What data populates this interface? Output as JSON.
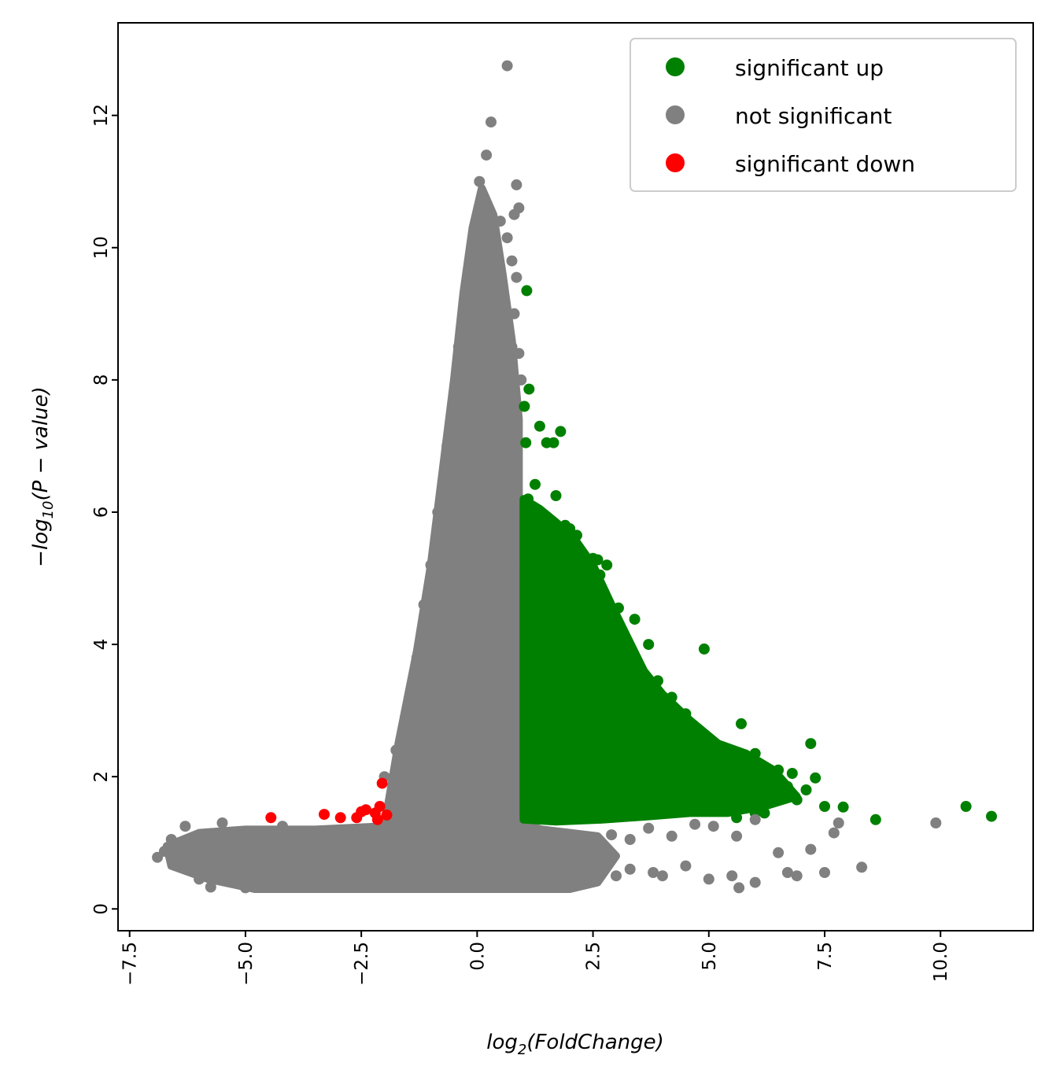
{
  "chart_data": {
    "type": "scatter",
    "title": "",
    "xlabel": {
      "base": "log",
      "sub": "2",
      "rest": "(FoldChange)"
    },
    "ylabel": {
      "pre": "−log",
      "sub": "10",
      "rest": "(P − value)"
    },
    "xlim": [
      -7.75,
      12.0
    ],
    "ylim": [
      -0.33,
      13.4
    ],
    "x_ticks": [
      -7.5,
      -5.0,
      -2.5,
      0.0,
      2.5,
      5.0,
      7.5,
      10.0
    ],
    "x_tick_labels": [
      "−7.5",
      "−5.0",
      "−2.5",
      "0.0",
      "2.5",
      "5.0",
      "7.5",
      "10.0"
    ],
    "y_ticks": [
      0,
      2,
      4,
      6,
      8,
      10,
      12
    ],
    "y_tick_labels": [
      "0",
      "2",
      "4",
      "6",
      "8",
      "10",
      "12"
    ],
    "grid": false,
    "legend_position": "top-right",
    "legend": [
      {
        "label": "significant up",
        "color": "#008000"
      },
      {
        "label": "not significant",
        "color": "#808080"
      },
      {
        "label": "significant down",
        "color": "#ff0000"
      }
    ],
    "series": [
      {
        "name": "significant up",
        "color": "#008000",
        "points": [
          [
            1.07,
            9.35
          ],
          [
            1.12,
            7.86
          ],
          [
            1.02,
            7.6
          ],
          [
            1.35,
            7.3
          ],
          [
            1.05,
            7.05
          ],
          [
            1.5,
            7.05
          ],
          [
            1.65,
            7.05
          ],
          [
            1.8,
            7.22
          ],
          [
            1.25,
            6.42
          ],
          [
            1.7,
            6.25
          ],
          [
            1.1,
            6.2
          ],
          [
            1.9,
            5.8
          ],
          [
            2.0,
            5.75
          ],
          [
            2.15,
            5.65
          ],
          [
            2.5,
            5.3
          ],
          [
            2.6,
            5.28
          ],
          [
            2.8,
            5.2
          ],
          [
            2.65,
            5.05
          ],
          [
            3.05,
            4.55
          ],
          [
            3.4,
            4.38
          ],
          [
            3.7,
            4.0
          ],
          [
            4.9,
            3.93
          ],
          [
            3.9,
            3.45
          ],
          [
            4.2,
            3.2
          ],
          [
            4.5,
            2.95
          ],
          [
            5.7,
            2.8
          ],
          [
            7.2,
            2.5
          ],
          [
            5.0,
            2.4
          ],
          [
            6.0,
            2.35
          ],
          [
            6.5,
            2.1
          ],
          [
            6.8,
            2.05
          ],
          [
            7.3,
            1.98
          ],
          [
            6.7,
            1.85
          ],
          [
            7.1,
            1.8
          ],
          [
            6.9,
            1.65
          ],
          [
            7.5,
            1.55
          ],
          [
            7.9,
            1.54
          ],
          [
            6.0,
            1.45
          ],
          [
            4.4,
            1.52
          ],
          [
            3.6,
            1.48
          ],
          [
            2.8,
            1.45
          ],
          [
            8.6,
            1.35
          ],
          [
            10.55,
            1.55
          ],
          [
            11.1,
            1.4
          ],
          [
            5.6,
            1.38
          ],
          [
            6.2,
            1.45
          ],
          [
            1.5,
            1.4
          ],
          [
            2.2,
            1.42
          ],
          [
            3.2,
            1.5
          ]
        ]
      },
      {
        "name": "not significant",
        "color": "#808080",
        "points": [
          [
            0.65,
            12.75
          ],
          [
            0.3,
            11.9
          ],
          [
            0.2,
            11.4
          ],
          [
            0.05,
            11.0
          ],
          [
            0.85,
            10.95
          ],
          [
            0.9,
            10.6
          ],
          [
            0.8,
            10.5
          ],
          [
            0.5,
            10.4
          ],
          [
            0.65,
            10.15
          ],
          [
            0.75,
            9.8
          ],
          [
            0.85,
            9.55
          ],
          [
            0.8,
            9.0
          ],
          [
            0.75,
            8.5
          ],
          [
            0.9,
            8.4
          ],
          [
            0.95,
            8.0
          ],
          [
            -0.4,
            8.5
          ],
          [
            -0.5,
            7.8
          ],
          [
            -0.65,
            7.0
          ],
          [
            -0.85,
            6.0
          ],
          [
            -1.0,
            5.2
          ],
          [
            -1.15,
            4.6
          ],
          [
            -1.3,
            3.8
          ],
          [
            -1.4,
            3.3
          ],
          [
            -1.55,
            2.9
          ],
          [
            -1.75,
            2.4
          ],
          [
            -2.0,
            2.0
          ],
          [
            -6.9,
            0.78
          ],
          [
            -6.75,
            0.87
          ],
          [
            -6.6,
            1.05
          ],
          [
            -6.3,
            1.25
          ],
          [
            -6.0,
            0.45
          ],
          [
            -5.75,
            0.33
          ],
          [
            -5.5,
            0.6
          ],
          [
            -5.8,
            0.7
          ],
          [
            -5.5,
            1.3
          ],
          [
            -5.0,
            0.32
          ],
          [
            -4.2,
            1.25
          ],
          [
            -3.0,
            1.15
          ],
          [
            -1.0,
            1.2
          ],
          [
            1.5,
            0.55
          ],
          [
            3.0,
            0.5
          ],
          [
            3.3,
            0.6
          ],
          [
            3.8,
            0.55
          ],
          [
            4.0,
            0.5
          ],
          [
            4.5,
            0.65
          ],
          [
            5.0,
            0.45
          ],
          [
            5.5,
            0.5
          ],
          [
            6.0,
            0.4
          ],
          [
            5.65,
            0.32
          ],
          [
            6.5,
            0.85
          ],
          [
            7.2,
            0.9
          ],
          [
            7.5,
            0.55
          ],
          [
            7.8,
            1.3
          ],
          [
            8.3,
            0.63
          ],
          [
            9.9,
            1.3
          ],
          [
            6.0,
            1.35
          ],
          [
            5.6,
            1.1
          ],
          [
            5.1,
            1.25
          ],
          [
            4.7,
            1.28
          ],
          [
            4.2,
            1.1
          ],
          [
            3.7,
            1.22
          ],
          [
            3.3,
            1.05
          ],
          [
            2.9,
            1.12
          ],
          [
            2.5,
            1.0
          ],
          [
            2.1,
            1.08
          ],
          [
            1.7,
            0.9
          ],
          [
            1.3,
            1.15
          ],
          [
            6.7,
            0.55
          ],
          [
            7.7,
            1.15
          ],
          [
            6.9,
            0.5
          ]
        ]
      },
      {
        "name": "significant down",
        "color": "#ff0000",
        "points": [
          [
            -4.45,
            1.38
          ],
          [
            -3.3,
            1.43
          ],
          [
            -2.95,
            1.38
          ],
          [
            -2.6,
            1.38
          ],
          [
            -2.5,
            1.47
          ],
          [
            -2.4,
            1.5
          ],
          [
            -2.2,
            1.45
          ],
          [
            -2.1,
            1.55
          ],
          [
            -2.05,
            1.9
          ],
          [
            -1.95,
            1.42
          ],
          [
            -2.15,
            1.35
          ]
        ]
      }
    ]
  }
}
